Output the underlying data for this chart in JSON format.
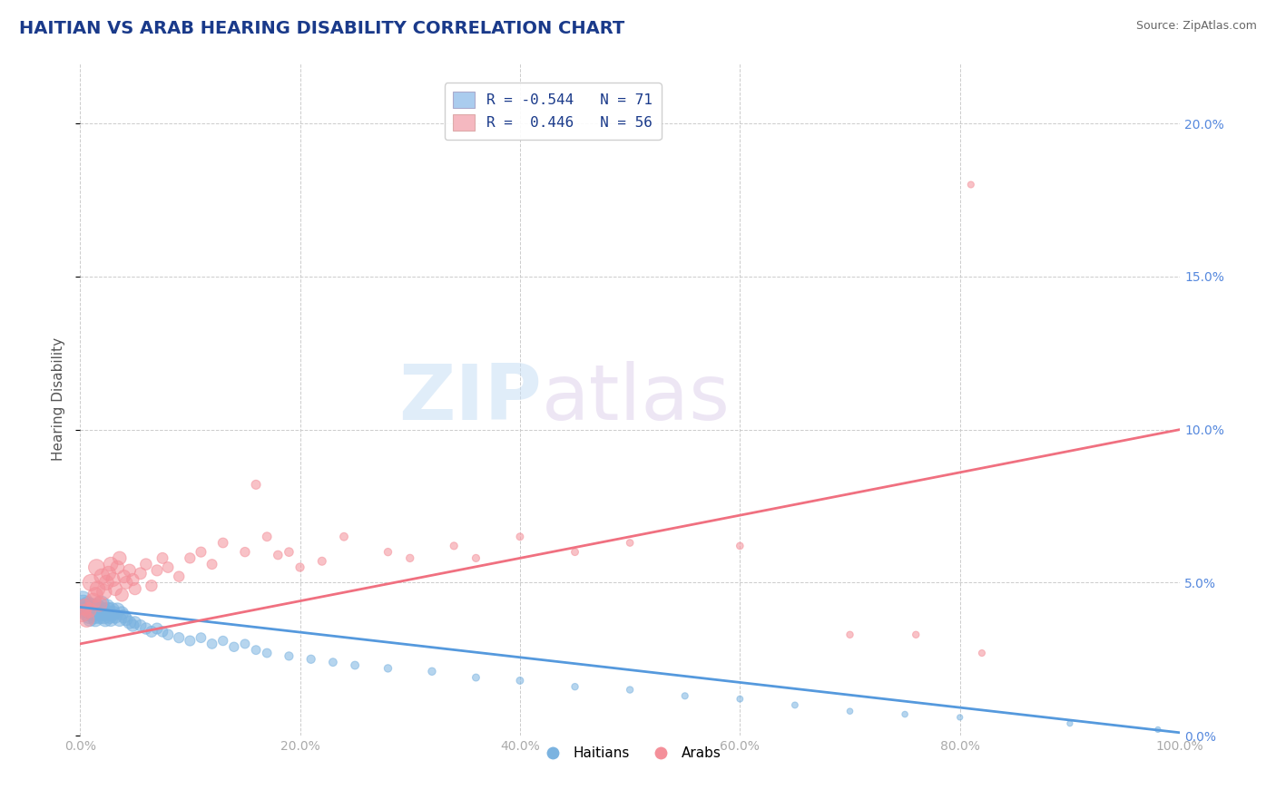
{
  "title": "HAITIAN VS ARAB HEARING DISABILITY CORRELATION CHART",
  "source": "Source: ZipAtlas.com",
  "ylabel": "Hearing Disability",
  "watermark_zip": "ZIP",
  "watermark_atlas": "atlas",
  "legend_blue_label": "R = -0.544   N = 71",
  "legend_pink_label": "R =  0.446   N = 56",
  "legend_bottom": [
    "Haitians",
    "Arabs"
  ],
  "title_color": "#1a3a8a",
  "title_fontsize": 14,
  "source_color": "#666666",
  "axis_tick_color": "#aaaaaa",
  "right_axis_color": "#5588dd",
  "grid_color": "#cccccc",
  "background_color": "#ffffff",
  "blue_color": "#7bb3e0",
  "pink_color": "#f4909a",
  "blue_line_color": "#5599dd",
  "pink_line_color": "#f07080",
  "xmin": 0.0,
  "xmax": 1.0,
  "ymin": 0.0,
  "ymax": 0.22,
  "yticks": [
    0.0,
    0.05,
    0.1,
    0.15,
    0.2
  ],
  "xticks": [
    0.0,
    0.2,
    0.4,
    0.6,
    0.8,
    1.0
  ],
  "blue_line_x0": 0.0,
  "blue_line_y0": 0.042,
  "blue_line_x1": 1.0,
  "blue_line_y1": 0.001,
  "pink_line_x0": 0.0,
  "pink_line_y0": 0.03,
  "pink_line_x1": 1.0,
  "pink_line_y1": 0.1,
  "blue_points": [
    [
      0.002,
      0.044,
      120
    ],
    [
      0.003,
      0.043,
      100
    ],
    [
      0.004,
      0.042,
      90
    ],
    [
      0.005,
      0.041,
      80
    ],
    [
      0.006,
      0.04,
      75
    ],
    [
      0.007,
      0.043,
      70
    ],
    [
      0.008,
      0.039,
      65
    ],
    [
      0.009,
      0.038,
      60
    ],
    [
      0.01,
      0.042,
      100
    ],
    [
      0.011,
      0.041,
      80
    ],
    [
      0.012,
      0.04,
      75
    ],
    [
      0.013,
      0.039,
      70
    ],
    [
      0.014,
      0.038,
      65
    ],
    [
      0.015,
      0.042,
      85
    ],
    [
      0.016,
      0.041,
      80
    ],
    [
      0.017,
      0.04,
      75
    ],
    [
      0.018,
      0.039,
      70
    ],
    [
      0.019,
      0.043,
      85
    ],
    [
      0.02,
      0.041,
      80
    ],
    [
      0.021,
      0.04,
      75
    ],
    [
      0.022,
      0.039,
      70
    ],
    [
      0.023,
      0.038,
      65
    ],
    [
      0.024,
      0.042,
      80
    ],
    [
      0.025,
      0.041,
      75
    ],
    [
      0.026,
      0.04,
      70
    ],
    [
      0.027,
      0.039,
      65
    ],
    [
      0.028,
      0.038,
      60
    ],
    [
      0.029,
      0.041,
      70
    ],
    [
      0.03,
      0.04,
      65
    ],
    [
      0.032,
      0.039,
      60
    ],
    [
      0.034,
      0.041,
      65
    ],
    [
      0.036,
      0.038,
      60
    ],
    [
      0.038,
      0.04,
      55
    ],
    [
      0.04,
      0.039,
      55
    ],
    [
      0.042,
      0.038,
      50
    ],
    [
      0.045,
      0.037,
      50
    ],
    [
      0.048,
      0.036,
      45
    ],
    [
      0.05,
      0.037,
      45
    ],
    [
      0.055,
      0.036,
      40
    ],
    [
      0.06,
      0.035,
      40
    ],
    [
      0.065,
      0.034,
      38
    ],
    [
      0.07,
      0.035,
      38
    ],
    [
      0.075,
      0.034,
      35
    ],
    [
      0.08,
      0.033,
      35
    ],
    [
      0.09,
      0.032,
      33
    ],
    [
      0.1,
      0.031,
      32
    ],
    [
      0.11,
      0.032,
      30
    ],
    [
      0.12,
      0.03,
      30
    ],
    [
      0.13,
      0.031,
      28
    ],
    [
      0.14,
      0.029,
      28
    ],
    [
      0.15,
      0.03,
      26
    ],
    [
      0.16,
      0.028,
      25
    ],
    [
      0.17,
      0.027,
      25
    ],
    [
      0.19,
      0.026,
      22
    ],
    [
      0.21,
      0.025,
      22
    ],
    [
      0.23,
      0.024,
      20
    ],
    [
      0.25,
      0.023,
      20
    ],
    [
      0.28,
      0.022,
      18
    ],
    [
      0.32,
      0.021,
      18
    ],
    [
      0.36,
      0.019,
      16
    ],
    [
      0.4,
      0.018,
      16
    ],
    [
      0.45,
      0.016,
      14
    ],
    [
      0.5,
      0.015,
      14
    ],
    [
      0.55,
      0.013,
      13
    ],
    [
      0.6,
      0.012,
      12
    ],
    [
      0.65,
      0.01,
      12
    ],
    [
      0.7,
      0.008,
      11
    ],
    [
      0.75,
      0.007,
      11
    ],
    [
      0.8,
      0.006,
      10
    ],
    [
      0.9,
      0.004,
      10
    ],
    [
      0.98,
      0.002,
      10
    ]
  ],
  "pink_points": [
    [
      0.002,
      0.04,
      90
    ],
    [
      0.004,
      0.042,
      80
    ],
    [
      0.006,
      0.038,
      75
    ],
    [
      0.008,
      0.041,
      70
    ],
    [
      0.01,
      0.05,
      85
    ],
    [
      0.012,
      0.044,
      75
    ],
    [
      0.014,
      0.046,
      70
    ],
    [
      0.015,
      0.055,
      80
    ],
    [
      0.016,
      0.048,
      72
    ],
    [
      0.018,
      0.043,
      68
    ],
    [
      0.02,
      0.052,
      75
    ],
    [
      0.022,
      0.047,
      70
    ],
    [
      0.024,
      0.05,
      68
    ],
    [
      0.026,
      0.053,
      65
    ],
    [
      0.028,
      0.056,
      63
    ],
    [
      0.03,
      0.051,
      60
    ],
    [
      0.032,
      0.048,
      58
    ],
    [
      0.034,
      0.055,
      56
    ],
    [
      0.036,
      0.058,
      55
    ],
    [
      0.038,
      0.046,
      53
    ],
    [
      0.04,
      0.052,
      52
    ],
    [
      0.042,
      0.05,
      50
    ],
    [
      0.045,
      0.054,
      48
    ],
    [
      0.048,
      0.051,
      46
    ],
    [
      0.05,
      0.048,
      45
    ],
    [
      0.055,
      0.053,
      43
    ],
    [
      0.06,
      0.056,
      41
    ],
    [
      0.065,
      0.049,
      40
    ],
    [
      0.07,
      0.054,
      38
    ],
    [
      0.075,
      0.058,
      37
    ],
    [
      0.08,
      0.055,
      36
    ],
    [
      0.09,
      0.052,
      34
    ],
    [
      0.1,
      0.058,
      33
    ],
    [
      0.11,
      0.06,
      32
    ],
    [
      0.12,
      0.056,
      31
    ],
    [
      0.13,
      0.063,
      30
    ],
    [
      0.15,
      0.06,
      28
    ],
    [
      0.16,
      0.082,
      26
    ],
    [
      0.17,
      0.065,
      25
    ],
    [
      0.18,
      0.059,
      24
    ],
    [
      0.19,
      0.06,
      24
    ],
    [
      0.2,
      0.055,
      22
    ],
    [
      0.22,
      0.057,
      21
    ],
    [
      0.24,
      0.065,
      20
    ],
    [
      0.28,
      0.06,
      18
    ],
    [
      0.3,
      0.058,
      18
    ],
    [
      0.34,
      0.062,
      17
    ],
    [
      0.36,
      0.058,
      17
    ],
    [
      0.4,
      0.065,
      16
    ],
    [
      0.45,
      0.06,
      16
    ],
    [
      0.5,
      0.063,
      15
    ],
    [
      0.6,
      0.062,
      15
    ],
    [
      0.7,
      0.033,
      14
    ],
    [
      0.76,
      0.033,
      14
    ],
    [
      0.81,
      0.18,
      13
    ],
    [
      0.82,
      0.027,
      13
    ]
  ]
}
